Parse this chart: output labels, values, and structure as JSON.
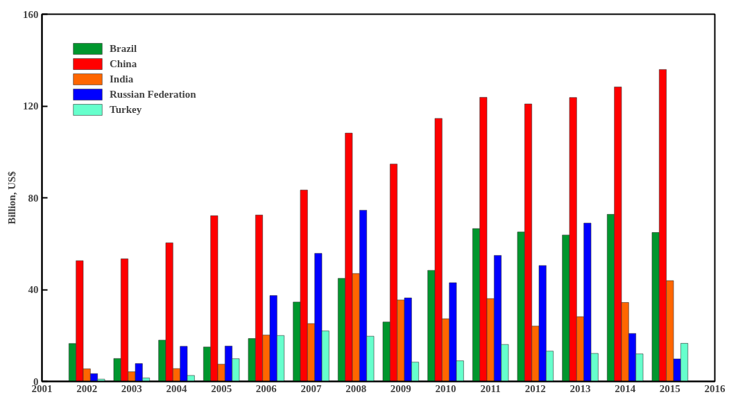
{
  "chart_data": {
    "type": "bar",
    "ylabel": "Billion, US$",
    "x": [
      2002,
      2003,
      2004,
      2005,
      2006,
      2007,
      2008,
      2009,
      2010,
      2011,
      2012,
      2013,
      2014,
      2015
    ],
    "series": [
      {
        "name": "Brazil",
        "color": "#00962e",
        "values": [
          16.5,
          10.0,
          18.0,
          15.0,
          18.7,
          34.6,
          44.9,
          25.9,
          48.4,
          66.6,
          65.1,
          63.8,
          72.8,
          64.9
        ]
      },
      {
        "name": "China",
        "color": "#ff0000",
        "values": [
          52.6,
          53.4,
          60.4,
          72.2,
          72.5,
          83.4,
          108.2,
          94.7,
          114.6,
          123.8,
          120.9,
          123.7,
          128.3,
          135.9
        ]
      },
      {
        "name": "India",
        "color": "#ff6600",
        "values": [
          5.5,
          4.2,
          5.6,
          7.5,
          20.2,
          25.2,
          47.0,
          35.5,
          27.3,
          36.1,
          24.1,
          28.2,
          34.4,
          43.9
        ]
      },
      {
        "name": "Russian Federation",
        "color": "#0000ff",
        "values": [
          3.4,
          7.8,
          15.3,
          15.4,
          37.4,
          55.8,
          74.6,
          36.4,
          43.0,
          54.9,
          50.5,
          69.0,
          20.9,
          9.8
        ]
      },
      {
        "name": "Turkey",
        "color": "#66ffcc",
        "values": [
          1.0,
          1.5,
          2.6,
          9.9,
          20.0,
          22.0,
          19.7,
          8.4,
          9.0,
          16.1,
          13.2,
          12.2,
          12.0,
          16.6
        ]
      }
    ],
    "xlim": [
      2001,
      2016
    ],
    "xticks": [
      2001,
      2002,
      2003,
      2004,
      2005,
      2006,
      2007,
      2008,
      2009,
      2010,
      2011,
      2012,
      2013,
      2014,
      2015,
      2016
    ],
    "ylim": [
      0,
      160
    ],
    "yticks": [
      0,
      40,
      80,
      120,
      160
    ],
    "grid": false,
    "legend": "top left"
  }
}
